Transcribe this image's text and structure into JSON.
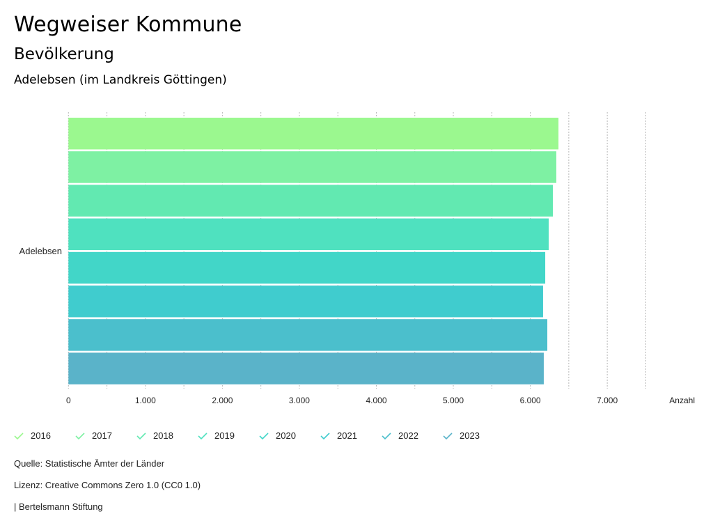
{
  "header": {
    "title": "Wegweiser Kommune",
    "subtitle": "Bevölkerung",
    "region": "Adelebsen (im Landkreis Göttingen)"
  },
  "chart_data": {
    "type": "bar",
    "orientation": "horizontal",
    "categories": [
      "Adelebsen"
    ],
    "series": [
      {
        "name": "2016",
        "values": [
          6366
        ],
        "color": "#9bf88f"
      },
      {
        "name": "2017",
        "values": [
          6338
        ],
        "color": "#7ef1a3"
      },
      {
        "name": "2018",
        "values": [
          6293
        ],
        "color": "#62e9b1"
      },
      {
        "name": "2019",
        "values": [
          6239
        ],
        "color": "#4fe1bf"
      },
      {
        "name": "2020",
        "values": [
          6194
        ],
        "color": "#42d6c8"
      },
      {
        "name": "2021",
        "values": [
          6166
        ],
        "color": "#40ccce"
      },
      {
        "name": "2022",
        "values": [
          6221
        ],
        "color": "#4bbfcc"
      },
      {
        "name": "2023",
        "values": [
          6175
        ],
        "color": "#5ab3c9"
      }
    ],
    "xlabel": "Anzahl",
    "ylabel": "",
    "xlim": [
      0,
      7500
    ],
    "x_ticks": [
      0,
      1000,
      2000,
      3000,
      4000,
      5000,
      6000,
      7000
    ],
    "x_tick_labels": [
      "0",
      "1.000",
      "2.000",
      "3.000",
      "4.000",
      "5.000",
      "6.000",
      "7.000"
    ],
    "grid": true,
    "grid_step": 500,
    "legend_position": "bottom-left"
  },
  "footer": {
    "source": "Quelle: Statistische Ämter der Länder",
    "license": "Lizenz: Creative Commons Zero 1.0 (CC0 1.0)",
    "publisher": "| Bertelsmann Stiftung"
  }
}
